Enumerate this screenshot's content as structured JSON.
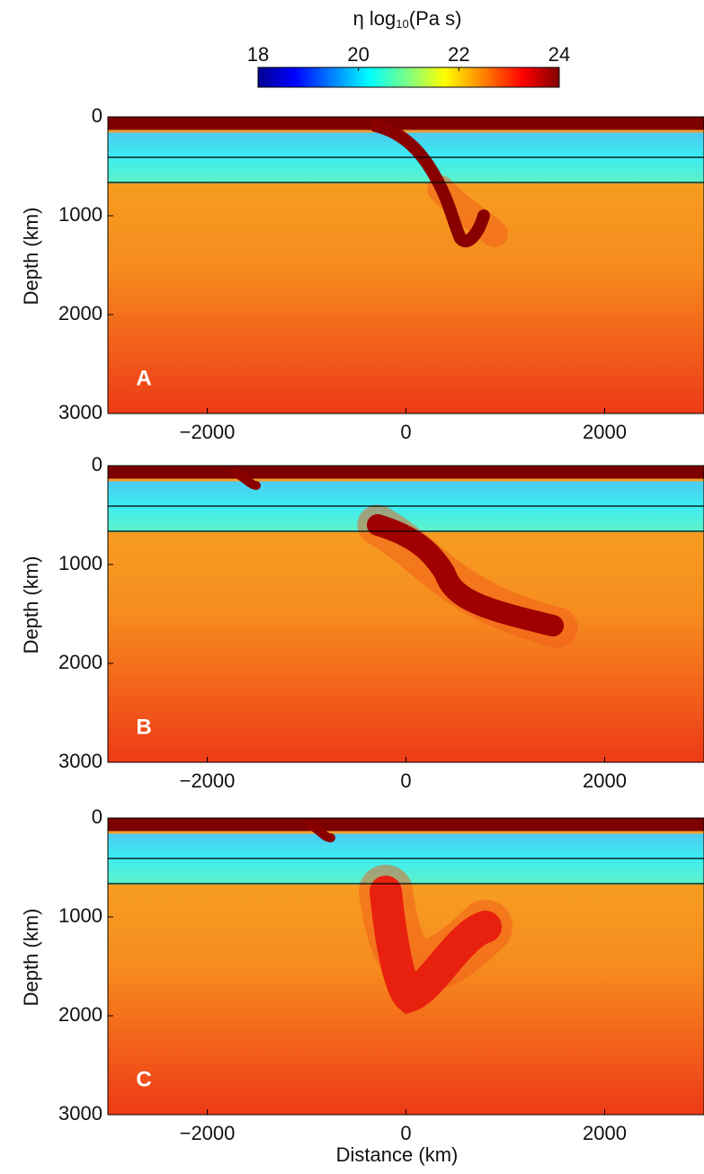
{
  "colorbar": {
    "title": [
      "η log",
      "10",
      "(Pa s)"
    ],
    "clim": [
      18,
      24
    ],
    "ticks": [
      18,
      20,
      22,
      24
    ]
  },
  "chart_data": [
    {
      "type": "heatmap",
      "label": "A",
      "ylabel": "Depth (km)",
      "xlim": [
        -3000,
        3000
      ],
      "ylim": [
        3000,
        0
      ],
      "xticks": [
        {
          "value": -2000,
          "label": "−2000"
        },
        0,
        2000
      ],
      "yticks": [
        0,
        1000,
        2000,
        3000
      ]
    },
    {
      "type": "heatmap",
      "label": "B",
      "ylabel": "Depth (km)",
      "xlim": [
        -3000,
        3000
      ],
      "ylim": [
        3000,
        0
      ],
      "xticks": [
        {
          "value": -2000,
          "label": "−2000"
        },
        0,
        2000
      ],
      "yticks": [
        0,
        1000,
        2000,
        3000
      ]
    },
    {
      "type": "heatmap",
      "label": "C",
      "ylabel": "Depth (km)",
      "xlabel": "Distance (km)",
      "xlim": [
        -3000,
        3000
      ],
      "ylim": [
        3000,
        0
      ],
      "xticks": [
        {
          "value": -2000,
          "label": "−2000"
        },
        0,
        2000
      ],
      "yticks": [
        0,
        1000,
        2000,
        3000
      ]
    }
  ]
}
